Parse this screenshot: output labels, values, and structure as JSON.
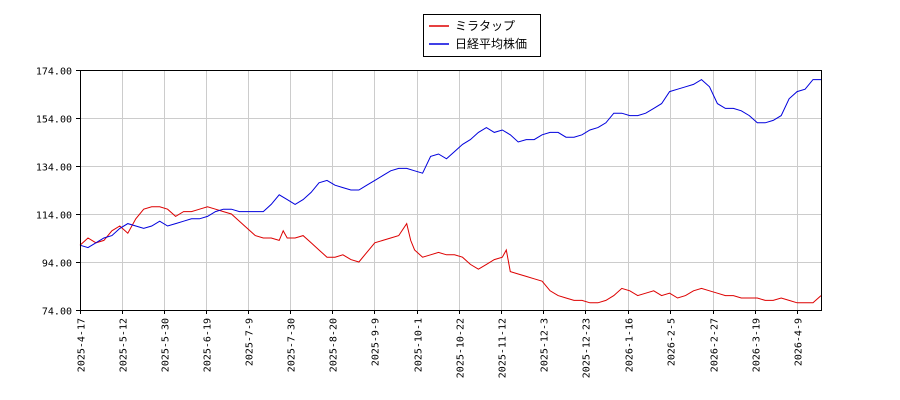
{
  "chart_data": {
    "type": "line",
    "title": "",
    "xlabel": "",
    "ylabel": "",
    "ylim": [
      74,
      174
    ],
    "y_ticks": [
      "74.00",
      "94.00",
      "114.00",
      "134.00",
      "154.00",
      "174.00"
    ],
    "x_ticks": [
      "2025-4-17",
      "2025-5-12",
      "2025-5-30",
      "2025-6-19",
      "2025-7-9",
      "2025-7-30",
      "2025-8-20",
      "2025-9-9",
      "2025-10-1",
      "2025-10-22",
      "2025-11-12",
      "2025-12-3",
      "2025-12-23",
      "2026-1-16",
      "2026-2-5",
      "2026-2-27",
      "2026-3-19",
      "2026-4-9"
    ],
    "grid": true,
    "legend_position": "top-center",
    "series": [
      {
        "name": "ミラタップ",
        "color": "#dd0000",
        "points": [
          [
            0,
            101
          ],
          [
            2,
            104
          ],
          [
            4,
            102
          ],
          [
            6,
            103
          ],
          [
            8,
            107
          ],
          [
            10,
            109
          ],
          [
            12,
            106
          ],
          [
            14,
            112
          ],
          [
            16,
            116
          ],
          [
            18,
            117
          ],
          [
            20,
            117
          ],
          [
            22,
            116
          ],
          [
            24,
            113
          ],
          [
            26,
            115
          ],
          [
            28,
            115
          ],
          [
            30,
            116
          ],
          [
            32,
            117
          ],
          [
            34,
            116
          ],
          [
            36,
            115
          ],
          [
            38,
            114
          ],
          [
            40,
            111
          ],
          [
            42,
            108
          ],
          [
            44,
            105
          ],
          [
            46,
            104
          ],
          [
            48,
            104
          ],
          [
            50,
            103
          ],
          [
            51,
            107
          ],
          [
            52,
            104
          ],
          [
            54,
            104
          ],
          [
            56,
            105
          ],
          [
            58,
            102
          ],
          [
            60,
            99
          ],
          [
            62,
            96
          ],
          [
            64,
            96
          ],
          [
            66,
            97
          ],
          [
            68,
            95
          ],
          [
            70,
            94
          ],
          [
            72,
            98
          ],
          [
            74,
            102
          ],
          [
            76,
            103
          ],
          [
            78,
            104
          ],
          [
            80,
            105
          ],
          [
            82,
            110
          ],
          [
            83,
            103
          ],
          [
            84,
            99
          ],
          [
            86,
            96
          ],
          [
            88,
            97
          ],
          [
            90,
            98
          ],
          [
            92,
            97
          ],
          [
            94,
            97
          ],
          [
            96,
            96
          ],
          [
            98,
            93
          ],
          [
            100,
            91
          ],
          [
            102,
            93
          ],
          [
            104,
            95
          ],
          [
            106,
            96
          ],
          [
            107,
            99
          ],
          [
            108,
            90
          ],
          [
            110,
            89
          ],
          [
            112,
            88
          ],
          [
            114,
            87
          ],
          [
            116,
            86
          ],
          [
            118,
            82
          ],
          [
            120,
            80
          ],
          [
            122,
            79
          ],
          [
            124,
            78
          ],
          [
            126,
            78
          ],
          [
            128,
            77
          ],
          [
            130,
            77
          ],
          [
            132,
            78
          ],
          [
            134,
            80
          ],
          [
            136,
            83
          ],
          [
            138,
            82
          ],
          [
            140,
            80
          ],
          [
            142,
            81
          ],
          [
            144,
            82
          ],
          [
            146,
            80
          ],
          [
            148,
            81
          ],
          [
            150,
            79
          ],
          [
            152,
            80
          ],
          [
            154,
            82
          ],
          [
            156,
            83
          ],
          [
            158,
            82
          ],
          [
            160,
            81
          ],
          [
            162,
            80
          ],
          [
            164,
            80
          ],
          [
            166,
            79
          ],
          [
            168,
            79
          ],
          [
            170,
            79
          ],
          [
            172,
            78
          ],
          [
            174,
            78
          ],
          [
            176,
            79
          ],
          [
            178,
            78
          ],
          [
            180,
            77
          ],
          [
            182,
            77
          ],
          [
            184,
            77
          ],
          [
            186,
            80
          ]
        ]
      },
      {
        "name": "日経平均株価",
        "color": "#0000dd",
        "points": [
          [
            0,
            101
          ],
          [
            2,
            100
          ],
          [
            4,
            102
          ],
          [
            6,
            104
          ],
          [
            8,
            105
          ],
          [
            10,
            108
          ],
          [
            12,
            110
          ],
          [
            14,
            109
          ],
          [
            16,
            108
          ],
          [
            18,
            109
          ],
          [
            20,
            111
          ],
          [
            22,
            109
          ],
          [
            24,
            110
          ],
          [
            26,
            111
          ],
          [
            28,
            112
          ],
          [
            30,
            112
          ],
          [
            32,
            113
          ],
          [
            34,
            115
          ],
          [
            36,
            116
          ],
          [
            38,
            116
          ],
          [
            40,
            115
          ],
          [
            42,
            115
          ],
          [
            44,
            115
          ],
          [
            46,
            115
          ],
          [
            48,
            118
          ],
          [
            50,
            122
          ],
          [
            52,
            120
          ],
          [
            54,
            118
          ],
          [
            56,
            120
          ],
          [
            58,
            123
          ],
          [
            60,
            127
          ],
          [
            62,
            128
          ],
          [
            64,
            126
          ],
          [
            66,
            125
          ],
          [
            68,
            124
          ],
          [
            70,
            124
          ],
          [
            72,
            126
          ],
          [
            74,
            128
          ],
          [
            76,
            130
          ],
          [
            78,
            132
          ],
          [
            80,
            133
          ],
          [
            82,
            133
          ],
          [
            84,
            132
          ],
          [
            86,
            131
          ],
          [
            88,
            138
          ],
          [
            90,
            139
          ],
          [
            92,
            137
          ],
          [
            94,
            140
          ],
          [
            96,
            143
          ],
          [
            98,
            145
          ],
          [
            100,
            148
          ],
          [
            102,
            150
          ],
          [
            104,
            148
          ],
          [
            106,
            149
          ],
          [
            108,
            147
          ],
          [
            110,
            144
          ],
          [
            112,
            145
          ],
          [
            114,
            145
          ],
          [
            116,
            147
          ],
          [
            118,
            148
          ],
          [
            120,
            148
          ],
          [
            122,
            146
          ],
          [
            124,
            146
          ],
          [
            126,
            147
          ],
          [
            128,
            149
          ],
          [
            130,
            150
          ],
          [
            132,
            152
          ],
          [
            134,
            156
          ],
          [
            136,
            156
          ],
          [
            138,
            155
          ],
          [
            140,
            155
          ],
          [
            142,
            156
          ],
          [
            144,
            158
          ],
          [
            146,
            160
          ],
          [
            148,
            165
          ],
          [
            150,
            166
          ],
          [
            152,
            167
          ],
          [
            154,
            168
          ],
          [
            156,
            170
          ],
          [
            158,
            167
          ],
          [
            160,
            160
          ],
          [
            162,
            158
          ],
          [
            164,
            158
          ],
          [
            166,
            157
          ],
          [
            168,
            155
          ],
          [
            170,
            152
          ],
          [
            172,
            152
          ],
          [
            174,
            153
          ],
          [
            176,
            155
          ],
          [
            178,
            162
          ],
          [
            180,
            165
          ],
          [
            182,
            166
          ],
          [
            184,
            170
          ],
          [
            186,
            170
          ]
        ]
      }
    ]
  }
}
